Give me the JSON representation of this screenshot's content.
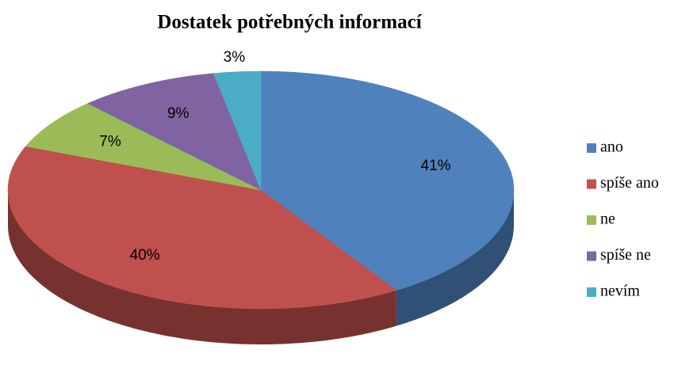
{
  "chart_data": {
    "type": "pie",
    "title": "Dostatek potřebných informací",
    "categories": [
      "ano",
      "spíše ano",
      "ne",
      "spíše ne",
      "nevím"
    ],
    "values": [
      41,
      40,
      7,
      9,
      3
    ],
    "value_labels": [
      "41%",
      "40%",
      "7%",
      "9%",
      "3%"
    ],
    "colors": [
      "#4f81bd",
      "#c0504d",
      "#9bbb59",
      "#8064a2",
      "#4bacc6"
    ],
    "legend": "right"
  }
}
